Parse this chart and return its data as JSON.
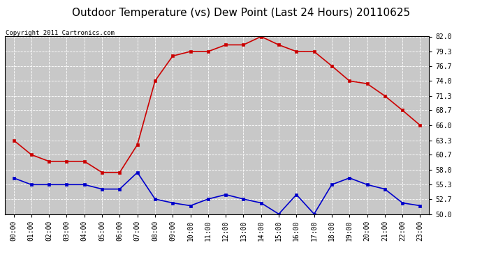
{
  "title": "Outdoor Temperature (vs) Dew Point (Last 24 Hours) 20110625",
  "copyright": "Copyright 2011 Cartronics.com",
  "hours": [
    "00:00",
    "01:00",
    "02:00",
    "03:00",
    "04:00",
    "05:00",
    "06:00",
    "07:00",
    "08:00",
    "09:00",
    "10:00",
    "11:00",
    "12:00",
    "13:00",
    "14:00",
    "15:00",
    "16:00",
    "17:00",
    "18:00",
    "19:00",
    "20:00",
    "21:00",
    "22:00",
    "23:00"
  ],
  "temp": [
    63.3,
    60.7,
    59.5,
    59.5,
    59.5,
    57.5,
    57.5,
    62.5,
    74.0,
    78.5,
    79.3,
    79.3,
    80.5,
    80.5,
    82.0,
    80.5,
    79.3,
    79.3,
    76.7,
    74.0,
    73.5,
    71.3,
    68.7,
    66.0
  ],
  "dew": [
    56.5,
    55.3,
    55.3,
    55.3,
    55.3,
    54.5,
    54.5,
    57.5,
    52.7,
    52.0,
    51.5,
    52.7,
    53.5,
    52.7,
    52.0,
    50.0,
    53.5,
    50.0,
    55.3,
    56.5,
    55.3,
    54.5,
    52.0,
    51.5
  ],
  "ylim": [
    50.0,
    82.0
  ],
  "yticks": [
    50.0,
    52.7,
    55.3,
    58.0,
    60.7,
    63.3,
    66.0,
    68.7,
    71.3,
    74.0,
    76.7,
    79.3,
    82.0
  ],
  "temp_color": "#cc0000",
  "dew_color": "#0000cc",
  "bg_color": "#ffffff",
  "plot_bg_color": "#c8c8c8",
  "grid_color": "#ffffff",
  "title_fontsize": 11,
  "copyright_fontsize": 6.5,
  "tick_fontsize": 7
}
